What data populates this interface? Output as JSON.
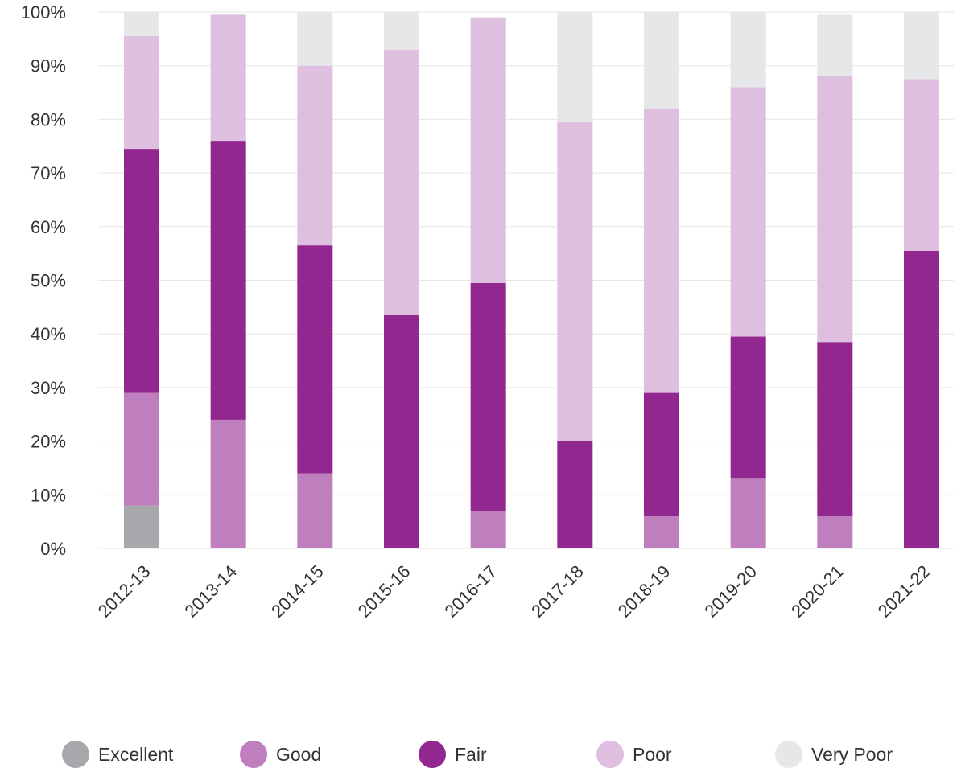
{
  "chart_data": {
    "type": "bar",
    "stacked": true,
    "categories": [
      "2012-13",
      "2013-14",
      "2014-15",
      "2015-16",
      "2016-17",
      "2017-18",
      "2018-19",
      "2019-20",
      "2020-21",
      "2021-22"
    ],
    "series": [
      {
        "name": "Excellent",
        "color": "#a7a8ab",
        "values": [
          8,
          0,
          0,
          0,
          0,
          0,
          0,
          0,
          0,
          0
        ]
      },
      {
        "name": "Good",
        "color": "#bf7fbf",
        "values": [
          21,
          24,
          14,
          0,
          7,
          0,
          6,
          13,
          6,
          0
        ]
      },
      {
        "name": "Fair",
        "color": "#92278f",
        "values": [
          45.5,
          52,
          42.5,
          43.5,
          42.5,
          20,
          23,
          26.5,
          32.5,
          55.5
        ]
      },
      {
        "name": "Poor",
        "color": "#dfbfdf",
        "values": [
          21,
          23.5,
          33.5,
          49.5,
          49.5,
          59.5,
          53,
          46.5,
          49.5,
          32
        ]
      },
      {
        "name": "Very Poor",
        "color": "#e6e7e8",
        "values": [
          4.5,
          0,
          10,
          7,
          0,
          20.5,
          18,
          14,
          11.5,
          12.5
        ]
      }
    ],
    "yticks": [
      "0%",
      "10%",
      "20%",
      "30%",
      "40%",
      "50%",
      "60%",
      "70%",
      "80%",
      "90%",
      "100%"
    ],
    "ylim": [
      0,
      100
    ],
    "xlabel": "",
    "ylabel": "",
    "grid": true,
    "legend_position": "bottom"
  }
}
